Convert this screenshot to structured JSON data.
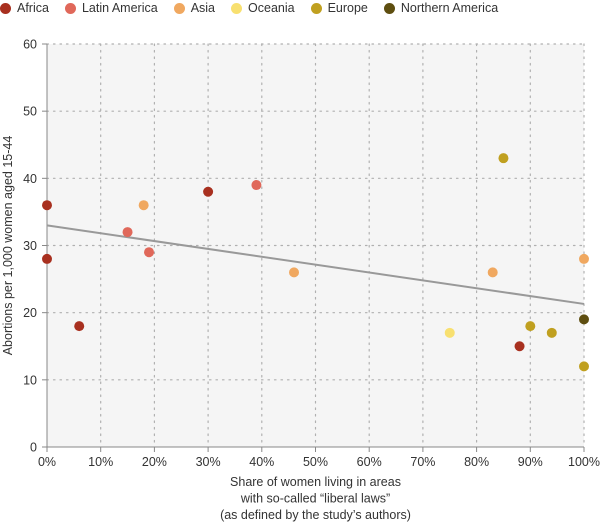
{
  "chart_data": {
    "type": "scatter",
    "xlabel": [
      "Share of women living in areas",
      "with so-called “liberal laws”",
      "(as defined by the study’s authors)"
    ],
    "ylabel": "Abortions per 1,000 women aged 15-44",
    "xlim": [
      0,
      100
    ],
    "ylim": [
      0,
      60
    ],
    "x_ticks": [
      "0%",
      "10%",
      "20%",
      "30%",
      "40%",
      "50%",
      "60%",
      "70%",
      "80%",
      "90%",
      "100%"
    ],
    "y_ticks": [
      "0",
      "10",
      "20",
      "30",
      "40",
      "50",
      "60"
    ],
    "grid": "dotted",
    "legend_position": "top-left",
    "trendline": {
      "x": [
        0,
        100
      ],
      "y": [
        33,
        21.3
      ],
      "color": "#999999"
    },
    "series": [
      {
        "name": "Africa",
        "color": "#a8301f",
        "points": [
          {
            "x": 0,
            "y": 36
          },
          {
            "x": 0,
            "y": 28
          },
          {
            "x": 6,
            "y": 18
          },
          {
            "x": 30,
            "y": 38
          },
          {
            "x": 88,
            "y": 15
          }
        ]
      },
      {
        "name": "Latin America",
        "color": "#e0685a",
        "points": [
          {
            "x": 15,
            "y": 32
          },
          {
            "x": 19,
            "y": 29
          },
          {
            "x": 39,
            "y": 39
          }
        ]
      },
      {
        "name": "Asia",
        "color": "#f0a860",
        "points": [
          {
            "x": 18,
            "y": 36
          },
          {
            "x": 46,
            "y": 26
          },
          {
            "x": 83,
            "y": 26
          },
          {
            "x": 100,
            "y": 28
          }
        ]
      },
      {
        "name": "Oceania",
        "color": "#f8e070",
        "points": [
          {
            "x": 75,
            "y": 17
          }
        ]
      },
      {
        "name": "Europe",
        "color": "#c0a020",
        "points": [
          {
            "x": 85,
            "y": 43
          },
          {
            "x": 90,
            "y": 18
          },
          {
            "x": 94,
            "y": 17
          },
          {
            "x": 100,
            "y": 12
          }
        ]
      },
      {
        "name": "Northern America",
        "color": "#5e4e10",
        "points": [
          {
            "x": 100,
            "y": 19
          }
        ]
      }
    ]
  }
}
